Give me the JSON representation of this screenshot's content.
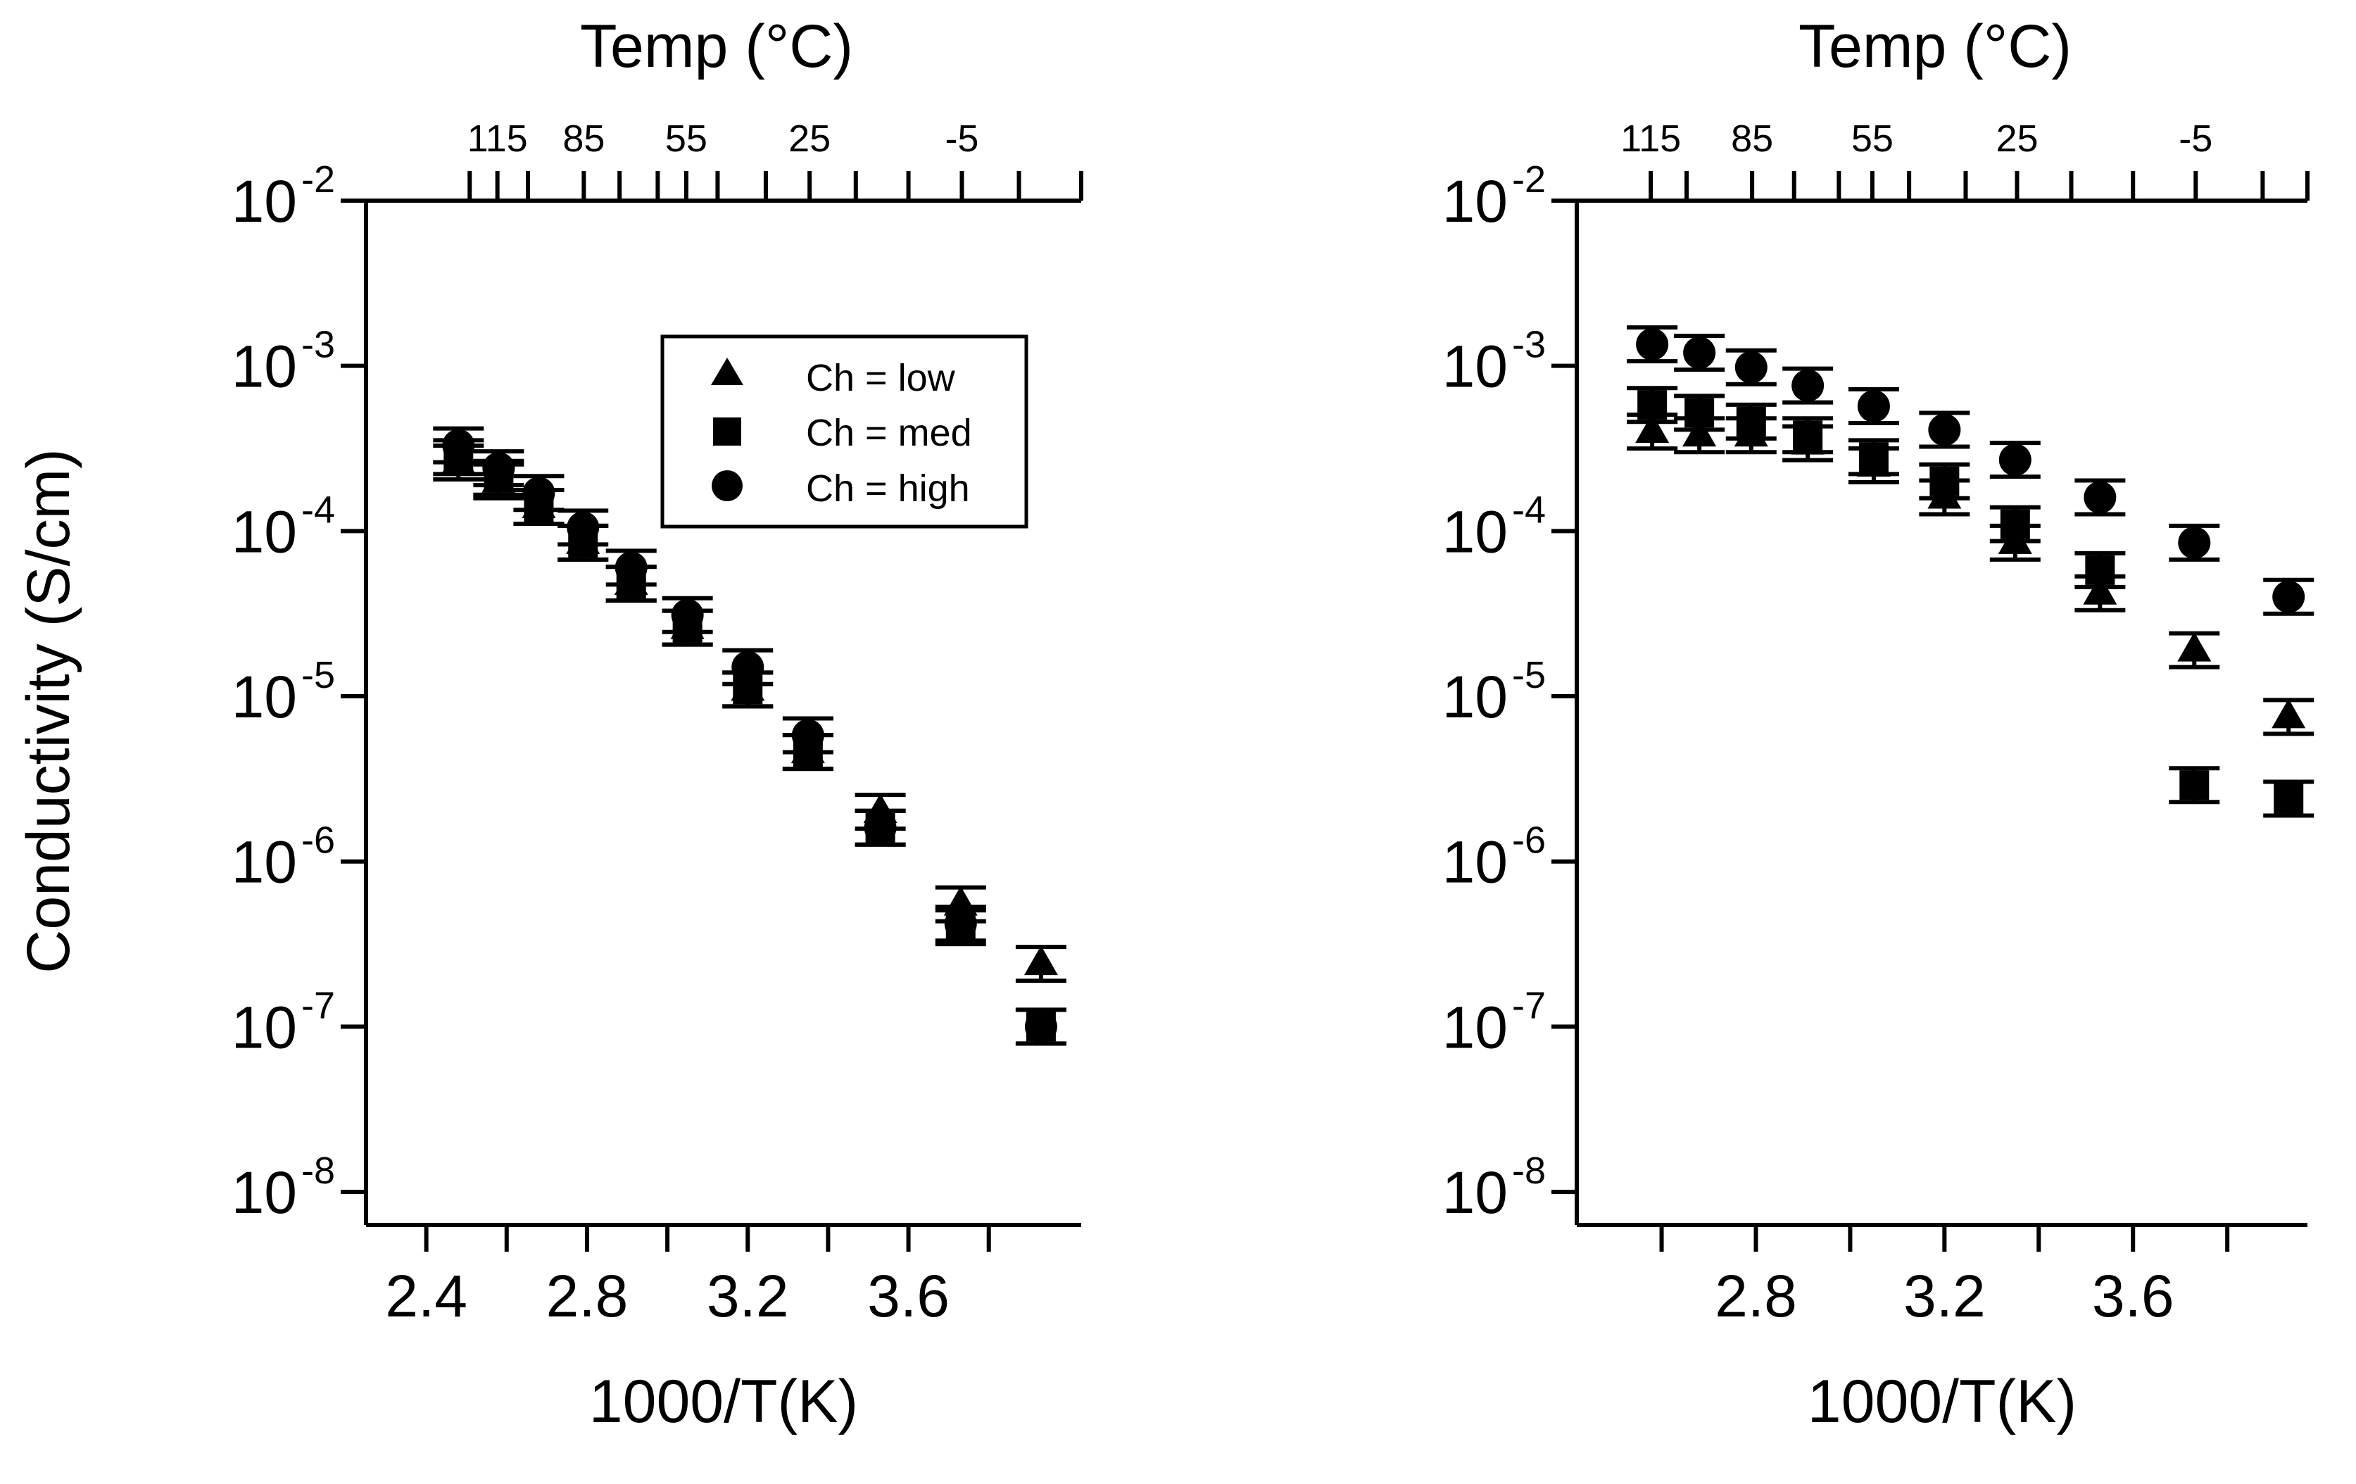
{
  "figure": {
    "shared_ylabel": "Conductivity (S/cm)",
    "legend_entries": [
      "Ch = low",
      "Ch = med",
      "Ch = high"
    ]
  },
  "chart_data": [
    {
      "type": "scatter",
      "panel": "left",
      "xlabel": "1000/T(K)",
      "ylabel": "Conductivity (S/cm)",
      "top_axis_label": "Temp (°C)",
      "top_ticks": [
        {
          "label": "115",
          "x": 2.577
        },
        {
          "label": "85",
          "x": 2.792
        },
        {
          "label": "55",
          "x": 3.047
        },
        {
          "label": "25",
          "x": 3.354
        },
        {
          "label": "-5",
          "x": 3.733
        }
      ],
      "top_minor_x": [
        2.508,
        2.653,
        2.881,
        2.976,
        3.125,
        3.245,
        3.469,
        3.6,
        3.875
      ],
      "xlim": [
        2.25,
        4.03
      ],
      "ylim_log10": [
        -8.2,
        -2
      ],
      "x_ticks": [
        {
          "value": 2.4,
          "label": "2.4"
        },
        {
          "value": 2.8,
          "label": "2.8"
        },
        {
          "value": 3.2,
          "label": "3.2"
        },
        {
          "value": 3.6,
          "label": "3.6"
        }
      ],
      "x_minor": [
        2.6,
        3.0,
        3.4,
        3.8
      ],
      "y_ticks": [
        {
          "base": "10",
          "exp": "-2",
          "log10": -2
        },
        {
          "base": "10",
          "exp": "-3",
          "log10": -3
        },
        {
          "base": "10",
          "exp": "-4",
          "log10": -4
        },
        {
          "base": "10",
          "exp": "-5",
          "log10": -5
        },
        {
          "base": "10",
          "exp": "-6",
          "log10": -6
        },
        {
          "base": "10",
          "exp": "-7",
          "log10": -7
        },
        {
          "base": "10",
          "exp": "-8",
          "log10": -8
        }
      ],
      "legend": {
        "position": "top-right"
      },
      "series": [
        {
          "name": "Ch = low",
          "marker": "triangle",
          "x": [
            2.48,
            2.58,
            2.68,
            2.79,
            2.91,
            3.05,
            3.2,
            3.35,
            3.53,
            3.73,
            3.93
          ],
          "y": [
            0.00026,
            0.0002,
            0.00014,
            8.5e-05,
            4.8e-05,
            2.6e-05,
            1.1e-05,
            4.6e-06,
            2e-06,
            5.5e-07,
            2.4e-07
          ]
        },
        {
          "name": "Ch = med",
          "marker": "square",
          "x": [
            2.48,
            2.58,
            2.68,
            2.79,
            2.91,
            3.05,
            3.2,
            3.35,
            3.53,
            3.73,
            3.93
          ],
          "y": [
            0.00028,
            0.00021,
            0.00014,
            8.5e-05,
            4.8e-05,
            2.6e-05,
            1.1e-05,
            4.6e-06,
            1.6e-06,
            4e-07,
            1e-07
          ]
        },
        {
          "name": "Ch = high",
          "marker": "circle",
          "x": [
            2.48,
            2.58,
            2.68,
            2.79,
            2.91,
            3.05,
            3.2,
            3.35,
            3.53,
            3.73,
            3.93
          ],
          "y": [
            0.00033,
            0.00024,
            0.00017,
            0.000105,
            6e-05,
            3.1e-05,
            1.5e-05,
            5.8e-06,
            1.6e-06,
            4.2e-07,
            1e-07
          ]
        }
      ]
    },
    {
      "type": "scatter",
      "panel": "right",
      "xlabel": "1000/T(K)",
      "ylabel": "Conductivity (S/cm)",
      "top_axis_label": "Temp (°C)",
      "top_ticks": [
        {
          "label": "115",
          "x": 2.577
        },
        {
          "label": "85",
          "x": 2.792
        },
        {
          "label": "55",
          "x": 3.047
        },
        {
          "label": "25",
          "x": 3.354
        },
        {
          "label": "-5",
          "x": 3.733
        }
      ],
      "top_minor_x": [
        2.653,
        2.881,
        2.976,
        3.125,
        3.245,
        3.469,
        3.6,
        3.875
      ],
      "xlim": [
        2.42,
        3.97
      ],
      "ylim_log10": [
        -8.2,
        -2
      ],
      "x_ticks": [
        {
          "value": 2.8,
          "label": "2.8"
        },
        {
          "value": 3.2,
          "label": "3.2"
        },
        {
          "value": 3.6,
          "label": "3.6"
        }
      ],
      "x_minor": [
        2.6,
        3.0,
        3.4,
        3.8
      ],
      "y_ticks": [
        {
          "base": "10",
          "exp": "-2",
          "log10": -2
        },
        {
          "base": "10",
          "exp": "-3",
          "log10": -3
        },
        {
          "base": "10",
          "exp": "-4",
          "log10": -4
        },
        {
          "base": "10",
          "exp": "-5",
          "log10": -5
        },
        {
          "base": "10",
          "exp": "-6",
          "log10": -6
        },
        {
          "base": "10",
          "exp": "-7",
          "log10": -7
        },
        {
          "base": "10",
          "exp": "-8",
          "log10": -8
        }
      ],
      "series": [
        {
          "name": "Ch = low",
          "marker": "triangle",
          "x": [
            2.58,
            2.68,
            2.79,
            2.91,
            3.05,
            3.2,
            3.35,
            3.53,
            3.73,
            3.93
          ],
          "y": [
            0.0004,
            0.00038,
            0.00038,
            0.00034,
            0.00025,
            0.00016,
            8.5e-05,
            4.2e-05,
            1.9e-05,
            7.5e-06
          ]
        },
        {
          "name": "Ch = med",
          "marker": "square",
          "x": [
            2.58,
            2.68,
            2.79,
            2.91,
            3.05,
            3.2,
            3.35,
            3.53,
            3.73,
            3.93
          ],
          "y": [
            0.00058,
            0.00052,
            0.00046,
            0.00038,
            0.00028,
            0.0002,
            0.00011,
            5.8e-05,
            2.9e-06,
            2.4e-06
          ]
        },
        {
          "name": "Ch = high",
          "marker": "circle",
          "x": [
            2.58,
            2.68,
            2.79,
            2.91,
            3.05,
            3.2,
            3.35,
            3.53,
            3.73,
            3.93
          ],
          "y": [
            0.00135,
            0.0012,
            0.00098,
            0.00076,
            0.00057,
            0.00041,
            0.00027,
            0.00016,
            8.5e-05,
            4e-05
          ]
        }
      ]
    }
  ]
}
